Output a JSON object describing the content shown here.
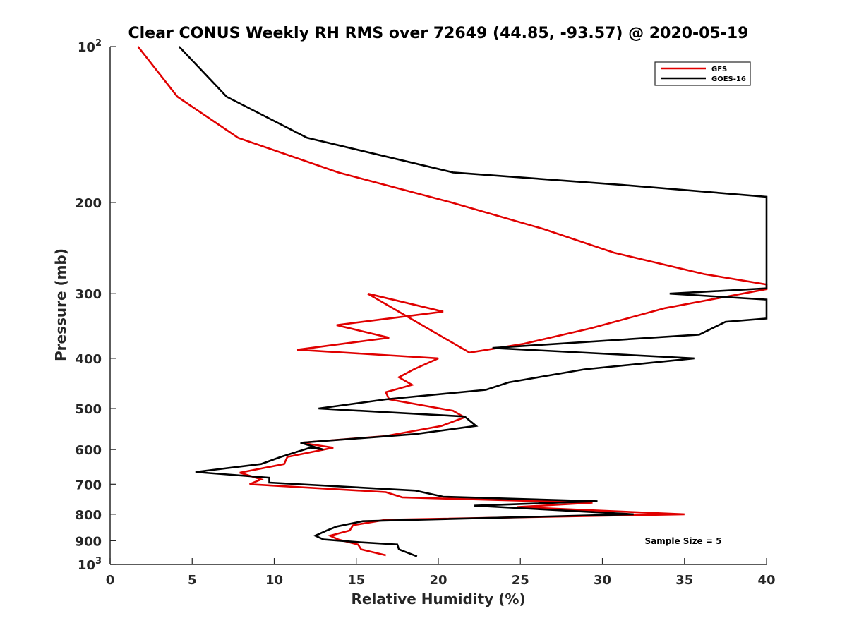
{
  "chart_data": {
    "type": "line",
    "title": "Clear CONUS Weekly RH RMS over 72649 (44.85, -93.57) @ 2020-05-19",
    "xlabel": "Relative Humidity (%)",
    "ylabel": "Pressure (mb)",
    "xlim": [
      0,
      40
    ],
    "ylim": [
      100,
      1000
    ],
    "y_scale": "log",
    "y_reversed": true,
    "grid": false,
    "legend_position": "top-right",
    "x_ticks": [
      "0",
      "5",
      "10",
      "15",
      "20",
      "25",
      "30",
      "35",
      "40"
    ],
    "y_ticks": [
      {
        "value": 100,
        "base": "10",
        "exp": "2"
      },
      {
        "value": 200,
        "label": "200"
      },
      {
        "value": 300,
        "label": "300"
      },
      {
        "value": 400,
        "label": "400"
      },
      {
        "value": 500,
        "label": "500"
      },
      {
        "value": 600,
        "label": "600"
      },
      {
        "value": 700,
        "label": "700"
      },
      {
        "value": 800,
        "label": "800"
      },
      {
        "value": 900,
        "label": "900"
      },
      {
        "value": 1000,
        "base": "10",
        "exp": "3"
      }
    ],
    "annotation": "Sample Size = 5",
    "series": [
      {
        "name": "GFS",
        "color": "#e00000",
        "points": [
          [
            1.7,
            100
          ],
          [
            4.1,
            125
          ],
          [
            7.8,
            150
          ],
          [
            13.9,
            175
          ],
          [
            20.8,
            200
          ],
          [
            26.4,
            225
          ],
          [
            30.7,
            250
          ],
          [
            36.2,
            275
          ],
          [
            40.0,
            288
          ],
          [
            40.0,
            294
          ],
          [
            33.8,
            320
          ],
          [
            29.3,
            350
          ],
          [
            25.2,
            375
          ],
          [
            21.9,
            390
          ],
          [
            15.7,
            300
          ],
          [
            20.3,
            325
          ],
          [
            13.8,
            345
          ],
          [
            17.0,
            365
          ],
          [
            11.4,
            385
          ],
          [
            20.0,
            400
          ],
          [
            18.5,
            420
          ],
          [
            17.6,
            435
          ],
          [
            18.4,
            450
          ],
          [
            16.8,
            465
          ],
          [
            17.0,
            480
          ],
          [
            20.9,
            505
          ],
          [
            21.6,
            520
          ],
          [
            20.2,
            540
          ],
          [
            16.8,
            565
          ],
          [
            11.6,
            582
          ],
          [
            13.6,
            595
          ],
          [
            10.8,
            620
          ],
          [
            10.6,
            640
          ],
          [
            7.9,
            665
          ],
          [
            9.2,
            685
          ],
          [
            8.5,
            700
          ],
          [
            16.8,
            725
          ],
          [
            17.8,
            742
          ],
          [
            29.4,
            760
          ],
          [
            24.8,
            775
          ],
          [
            35.0,
            800
          ],
          [
            16.8,
            820
          ],
          [
            14.8,
            840
          ],
          [
            14.6,
            860
          ],
          [
            13.4,
            880
          ],
          [
            13.9,
            895
          ],
          [
            15.1,
            915
          ],
          [
            15.3,
            935
          ],
          [
            16.8,
            960
          ]
        ]
      },
      {
        "name": "GOES-16",
        "color": "#000000",
        "points": [
          [
            4.2,
            100
          ],
          [
            7.1,
            125
          ],
          [
            12.0,
            150
          ],
          [
            20.9,
            175
          ],
          [
            31.2,
            185
          ],
          [
            40.0,
            195
          ],
          [
            40.0,
            293
          ],
          [
            34.1,
            300
          ],
          [
            40.0,
            308
          ],
          [
            40.0,
            335
          ],
          [
            37.5,
            340
          ],
          [
            35.9,
            360
          ],
          [
            23.3,
            382
          ],
          [
            35.6,
            400
          ],
          [
            28.9,
            420
          ],
          [
            24.3,
            445
          ],
          [
            22.9,
            460
          ],
          [
            16.8,
            480
          ],
          [
            12.7,
            500
          ],
          [
            21.6,
            518
          ],
          [
            22.3,
            540
          ],
          [
            18.6,
            560
          ],
          [
            11.6,
            582
          ],
          [
            13.0,
            600
          ],
          [
            12.2,
            595
          ],
          [
            10.4,
            620
          ],
          [
            9.2,
            640
          ],
          [
            5.2,
            663
          ],
          [
            9.7,
            680
          ],
          [
            9.7,
            695
          ],
          [
            18.6,
            720
          ],
          [
            20.3,
            740
          ],
          [
            29.7,
            755
          ],
          [
            22.2,
            770
          ],
          [
            31.9,
            800
          ],
          [
            15.4,
            825
          ],
          [
            13.8,
            845
          ],
          [
            13.2,
            860
          ],
          [
            12.5,
            880
          ],
          [
            13.0,
            895
          ],
          [
            15.0,
            905
          ],
          [
            17.5,
            915
          ],
          [
            17.6,
            935
          ],
          [
            18.7,
            965
          ]
        ]
      }
    ]
  }
}
